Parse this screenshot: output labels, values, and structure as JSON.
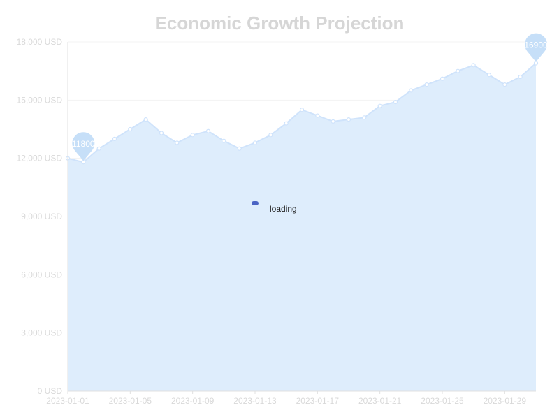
{
  "chart_data": {
    "type": "area",
    "title": "Economic Growth Projection",
    "x": [
      "2023-01-01",
      "2023-01-02",
      "2023-01-03",
      "2023-01-04",
      "2023-01-05",
      "2023-01-06",
      "2023-01-07",
      "2023-01-08",
      "2023-01-09",
      "2023-01-10",
      "2023-01-11",
      "2023-01-12",
      "2023-01-13",
      "2023-01-14",
      "2023-01-15",
      "2023-01-16",
      "2023-01-17",
      "2023-01-18",
      "2023-01-19",
      "2023-01-20",
      "2023-01-21",
      "2023-01-22",
      "2023-01-23",
      "2023-01-24",
      "2023-01-25",
      "2023-01-26",
      "2023-01-27",
      "2023-01-28",
      "2023-01-29",
      "2023-01-30",
      "2023-01-31"
    ],
    "values": [
      12000,
      11800,
      12500,
      13000,
      13500,
      14000,
      13300,
      12800,
      13200,
      13400,
      12900,
      12500,
      12800,
      13200,
      13800,
      14500,
      14200,
      13900,
      14000,
      14100,
      14700,
      14900,
      15500,
      15800,
      16100,
      16500,
      16800,
      16300,
      15800,
      16200,
      16900
    ],
    "x_tick_labels": [
      "2023-01-01",
      "2023-01-05",
      "2023-01-09",
      "2023-01-13",
      "2023-01-17",
      "2023-01-21",
      "2023-01-25",
      "2023-01-29"
    ],
    "y_tick_labels": [
      "0 USD",
      "3,000 USD",
      "6,000 USD",
      "9,000 USD",
      "12,000 USD",
      "15,000 USD",
      "18,000 USD"
    ],
    "ylim": [
      0,
      18000
    ],
    "markers": [
      {
        "type": "min",
        "label": "11800"
      },
      {
        "type": "max",
        "label": "16900"
      }
    ],
    "colors": {
      "area": "#deedfc",
      "line": "#cfe3fb",
      "marker": "#c6dff8",
      "axis": "#e0e0e0",
      "text": "#d9d9d9"
    }
  },
  "overlay": {
    "loading_text": "loading"
  }
}
